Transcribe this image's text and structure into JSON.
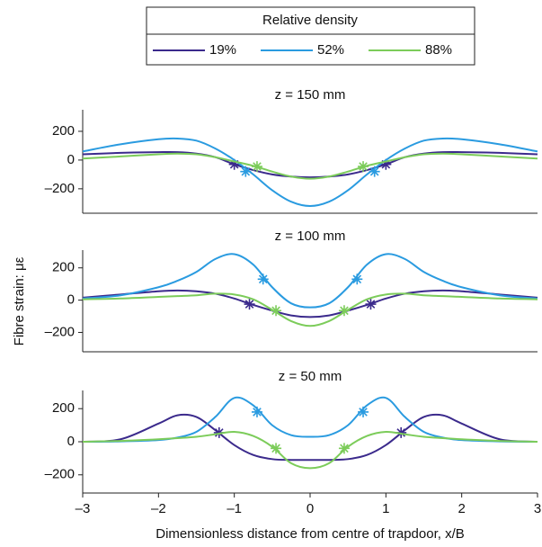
{
  "legend_title": "Relative density",
  "ylabel": "Fibre strain: με",
  "xlabel": "Dimensionless distance from centre of trapdoor, x/B",
  "chart_data": [
    {
      "type": "line",
      "title": "z = 150 mm",
      "x": [
        -3,
        -2.5,
        -2,
        -1.75,
        -1.5,
        -1.25,
        -1,
        -0.75,
        -0.5,
        -0.25,
        0,
        0.25,
        0.5,
        0.75,
        1,
        1.25,
        1.5,
        1.75,
        2,
        2.5,
        3
      ],
      "xlim": [
        -3,
        3
      ],
      "ylim": [
        -370,
        350
      ],
      "yticks": [
        200,
        0,
        {
          "value": -200,
          "label": "–200"
        }
      ],
      "series": [
        {
          "name": "19%",
          "color": "#3b2a8c",
          "values": [
            40,
            50,
            55,
            55,
            45,
            20,
            -30,
            -70,
            -100,
            -115,
            -120,
            -115,
            -100,
            -70,
            -30,
            20,
            45,
            55,
            55,
            50,
            40
          ],
          "markers": {
            "x": [
              -1,
              1
            ],
            "values": [
              -30,
              -30
            ]
          }
        },
        {
          "name": "52%",
          "color": "#2a9be0",
          "values": [
            60,
            110,
            145,
            150,
            135,
            80,
            0,
            -100,
            -210,
            -290,
            -320,
            -290,
            -210,
            -100,
            0,
            80,
            135,
            150,
            145,
            110,
            60
          ],
          "markers": {
            "x": [
              -0.85,
              0.85
            ],
            "values": [
              -80,
              -80
            ]
          }
        },
        {
          "name": "88%",
          "color": "#7ccc5a",
          "values": [
            10,
            25,
            40,
            45,
            40,
            20,
            -10,
            -40,
            -80,
            -115,
            -130,
            -115,
            -80,
            -40,
            -10,
            20,
            40,
            45,
            40,
            25,
            10
          ],
          "markers": {
            "x": [
              -0.7,
              0.7
            ],
            "values": [
              -45,
              -45
            ]
          }
        }
      ]
    },
    {
      "type": "line",
      "title": "z = 100 mm",
      "x": [
        -3,
        -2.5,
        -2,
        -1.75,
        -1.5,
        -1.25,
        -1,
        -0.75,
        -0.5,
        -0.25,
        0,
        0.25,
        0.5,
        0.75,
        1,
        1.25,
        1.5,
        1.75,
        2,
        2.5,
        3
      ],
      "xlim": [
        -3,
        3
      ],
      "ylim": [
        -320,
        310
      ],
      "yticks": [
        200,
        0,
        {
          "value": -200,
          "label": "–200"
        }
      ],
      "series": [
        {
          "name": "19%",
          "color": "#3b2a8c",
          "values": [
            15,
            35,
            55,
            60,
            55,
            40,
            10,
            -30,
            -65,
            -95,
            -105,
            -95,
            -65,
            -30,
            10,
            40,
            55,
            60,
            55,
            35,
            15
          ],
          "markers": {
            "x": [
              -0.8,
              0.8
            ],
            "values": [
              -25,
              -25
            ]
          }
        },
        {
          "name": "52%",
          "color": "#2a9be0",
          "values": [
            10,
            30,
            80,
            120,
            175,
            255,
            285,
            220,
            80,
            -20,
            -45,
            -20,
            80,
            220,
            285,
            255,
            175,
            120,
            80,
            30,
            10
          ],
          "markers": {
            "x": [
              -0.62,
              0.62
            ],
            "values": [
              130,
              130
            ]
          }
        },
        {
          "name": "88%",
          "color": "#7ccc5a",
          "values": [
            5,
            10,
            20,
            25,
            30,
            40,
            35,
            5,
            -60,
            -130,
            -160,
            -130,
            -60,
            5,
            35,
            40,
            30,
            25,
            20,
            10,
            5
          ],
          "markers": {
            "x": [
              -0.45,
              0.45
            ],
            "values": [
              -65,
              -65
            ]
          }
        }
      ]
    },
    {
      "type": "line",
      "title": "z = 50 mm",
      "x": [
        -3,
        -2.5,
        -2,
        -1.75,
        -1.5,
        -1.25,
        -1,
        -0.75,
        -0.5,
        -0.25,
        0,
        0.25,
        0.5,
        0.75,
        1,
        1.25,
        1.5,
        1.75,
        2,
        2.5,
        3
      ],
      "xlim": [
        -3,
        3
      ],
      "ylim": [
        -310,
        310
      ],
      "xticks": [
        {
          "value": -3,
          "label": "–3"
        },
        {
          "value": -2,
          "label": "–2"
        },
        {
          "value": -1,
          "label": "–1"
        },
        0,
        1,
        2,
        3
      ],
      "yticks": [
        200,
        0,
        {
          "value": -200,
          "label": "–200"
        }
      ],
      "series": [
        {
          "name": "19%",
          "color": "#3b2a8c",
          "values": [
            0,
            15,
            110,
            160,
            150,
            70,
            -20,
            -80,
            -105,
            -110,
            -110,
            -110,
            -105,
            -80,
            -20,
            70,
            150,
            160,
            110,
            15,
            0
          ],
          "markers": {
            "x": [
              -1.2,
              1.2
            ],
            "values": [
              55,
              55
            ]
          }
        },
        {
          "name": "52%",
          "color": "#2a9be0",
          "values": [
            0,
            2,
            10,
            25,
            60,
            150,
            265,
            220,
            100,
            40,
            30,
            40,
            100,
            220,
            265,
            150,
            60,
            25,
            10,
            2,
            0
          ],
          "markers": {
            "x": [
              -0.7,
              0.7
            ],
            "values": [
              180,
              180
            ]
          }
        },
        {
          "name": "88%",
          "color": "#7ccc5a",
          "values": [
            0,
            5,
            15,
            22,
            30,
            45,
            60,
            35,
            -30,
            -130,
            -160,
            -130,
            -30,
            35,
            60,
            45,
            30,
            22,
            15,
            5,
            0
          ],
          "markers": {
            "x": [
              -0.45,
              0.45
            ],
            "values": [
              -40,
              -40
            ]
          }
        }
      ]
    }
  ]
}
